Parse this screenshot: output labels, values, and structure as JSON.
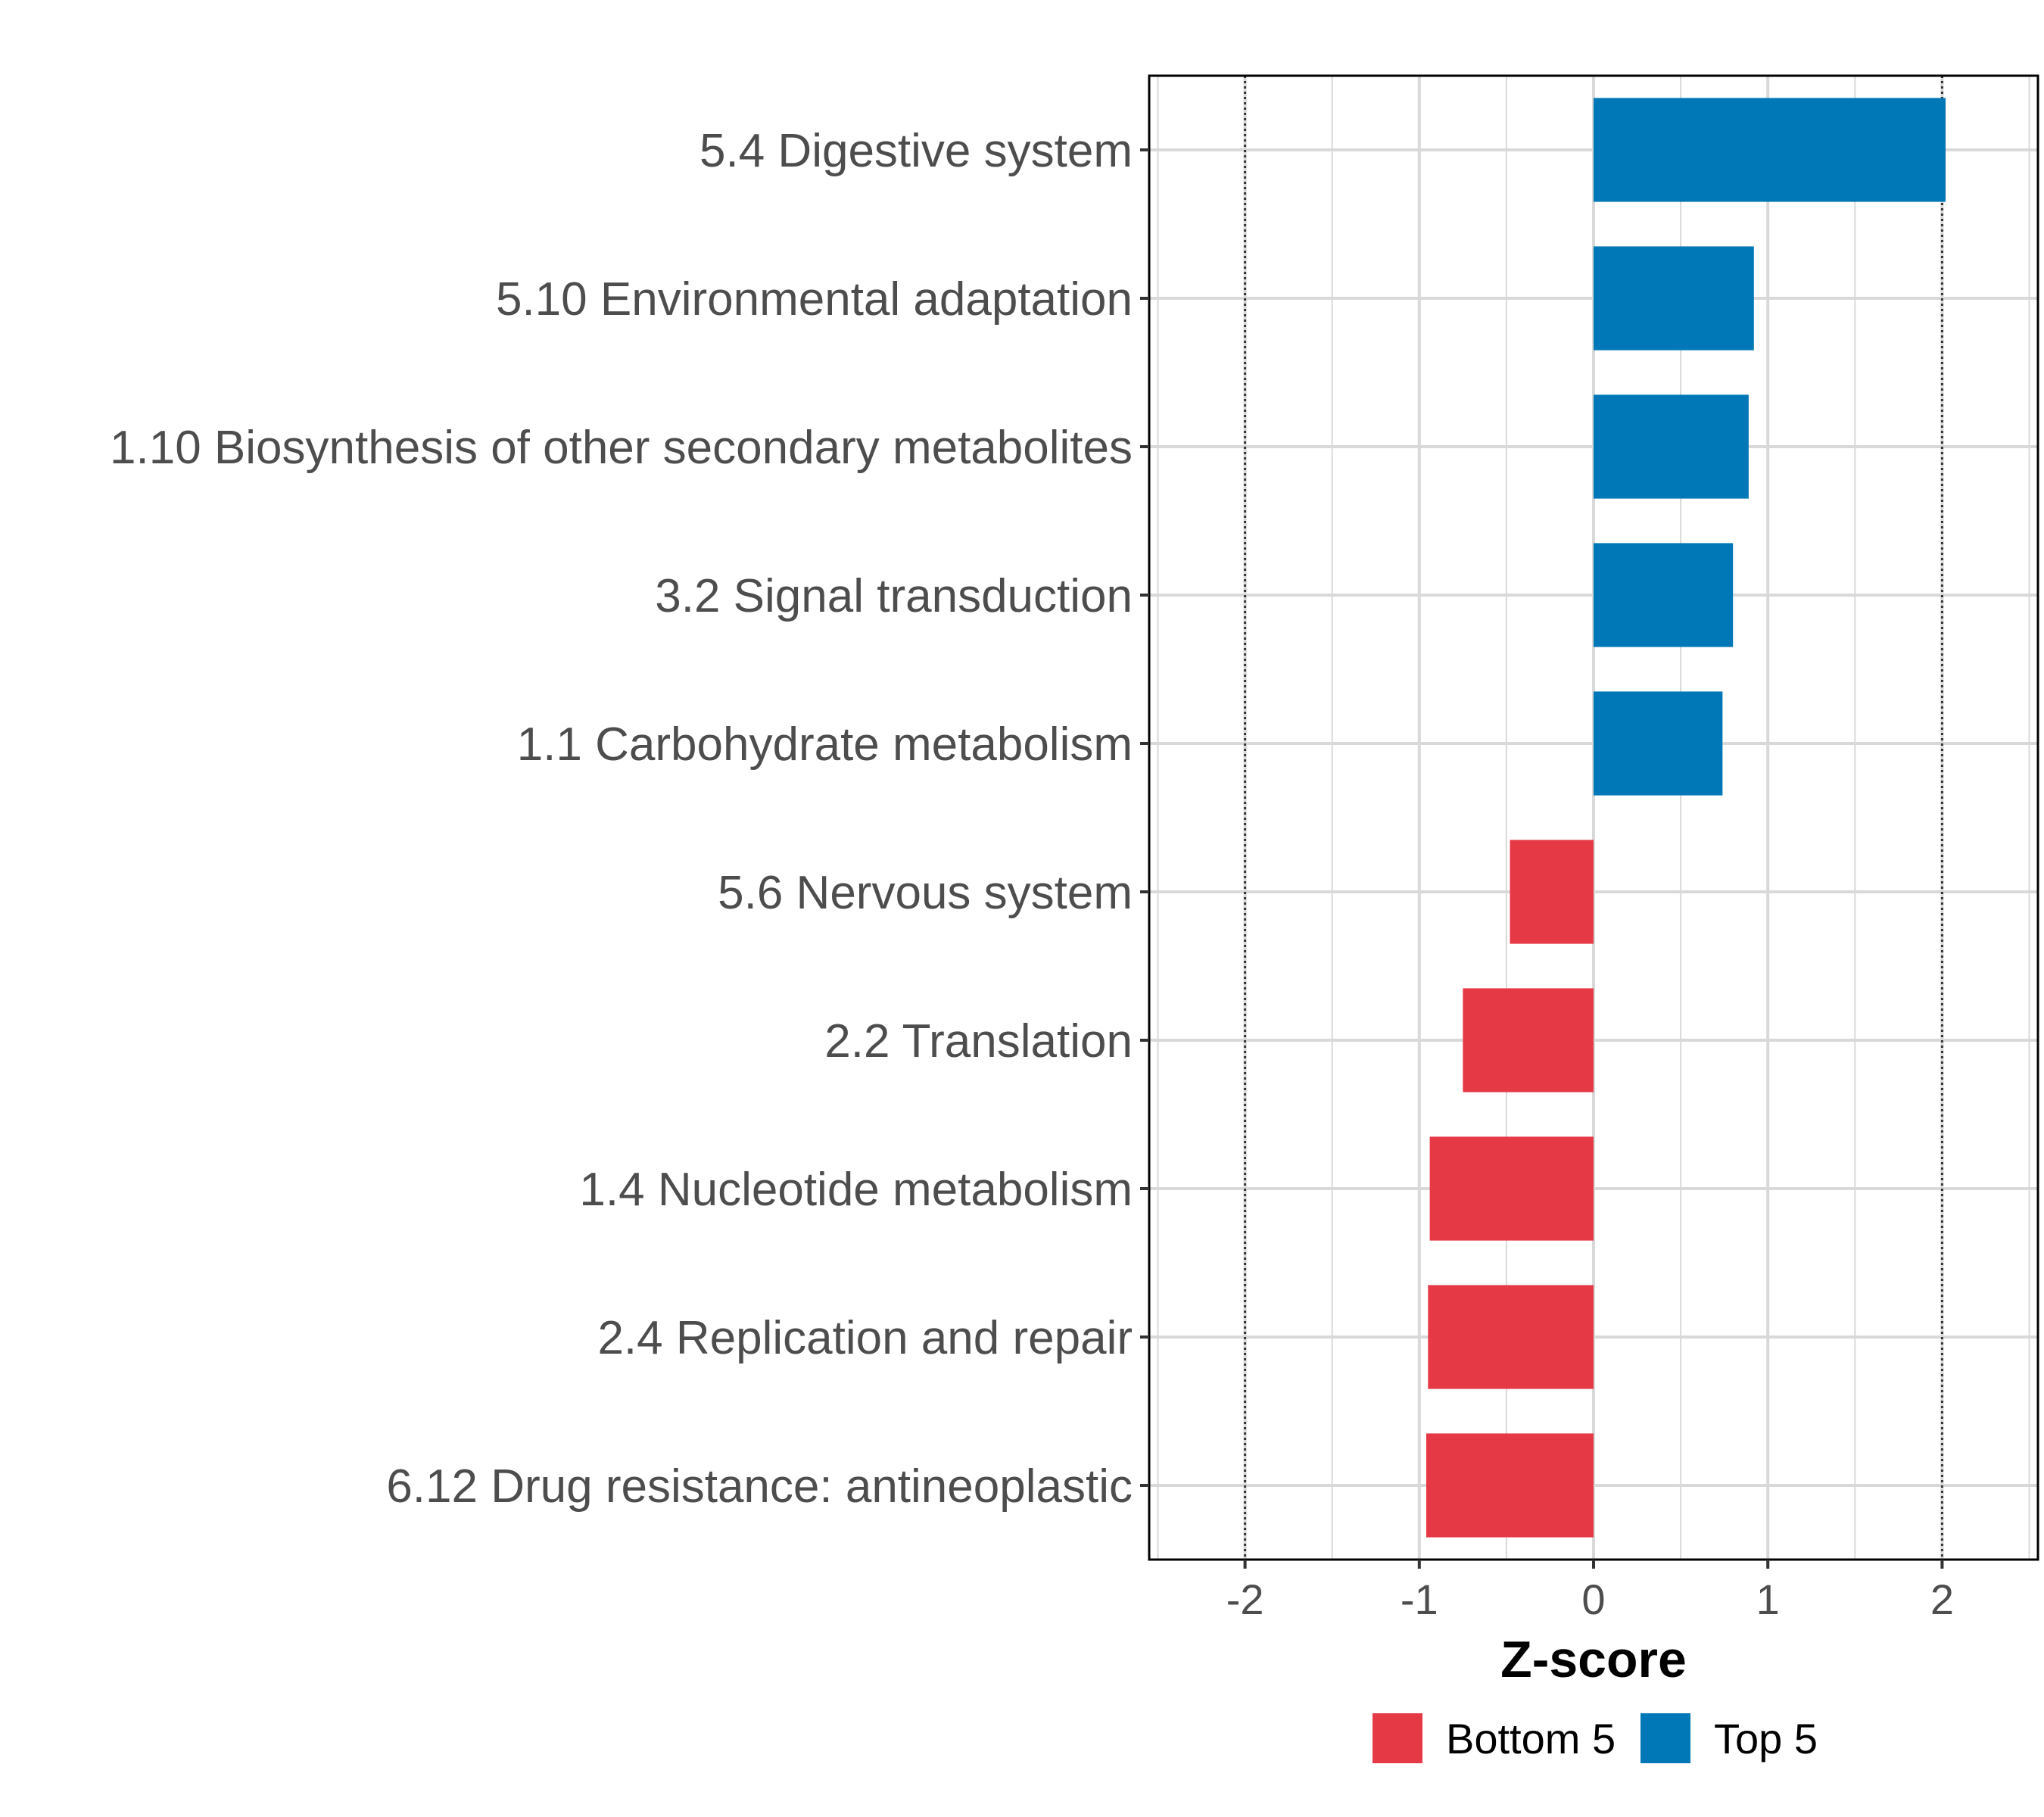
{
  "chart_data": {
    "type": "bar",
    "orientation": "horizontal",
    "categories": [
      "5.4 Digestive system",
      "5.10 Environmental adaptation",
      "1.10 Biosynthesis of other secondary metabolites",
      "3.2 Signal transduction",
      "1.1 Carbohydrate metabolism",
      "5.6 Nervous system",
      "2.2 Translation",
      "1.4 Nucleotide metabolism",
      "2.4 Replication and repair",
      "6.12 Drug resistance: antineoplastic"
    ],
    "values": [
      2.02,
      0.92,
      0.89,
      0.8,
      0.74,
      -0.48,
      -0.75,
      -0.94,
      -0.95,
      -0.96
    ],
    "groups": [
      "Top 5",
      "Top 5",
      "Top 5",
      "Top 5",
      "Top 5",
      "Bottom 5",
      "Bottom 5",
      "Bottom 5",
      "Bottom 5",
      "Bottom 5"
    ],
    "xlabel": "Z-score",
    "ylabel": "",
    "xlim": [
      -2.55,
      2.55
    ],
    "xticks": [
      "-2",
      "-1",
      "0",
      "1",
      "2"
    ],
    "xtick_values": [
      -2,
      -1,
      0,
      1,
      2
    ],
    "reference_lines": [
      -2,
      2
    ],
    "grid": true,
    "legend": {
      "position": "bottom",
      "entries": [
        {
          "label": "Bottom 5",
          "color": "#e63946"
        },
        {
          "label": "Top 5",
          "color": "#0077b6"
        }
      ]
    }
  },
  "colors": {
    "top": "#0077b6",
    "bottom": "#e63946",
    "grid": "#d9d9d9",
    "axis_text": "#4d4d4d"
  }
}
